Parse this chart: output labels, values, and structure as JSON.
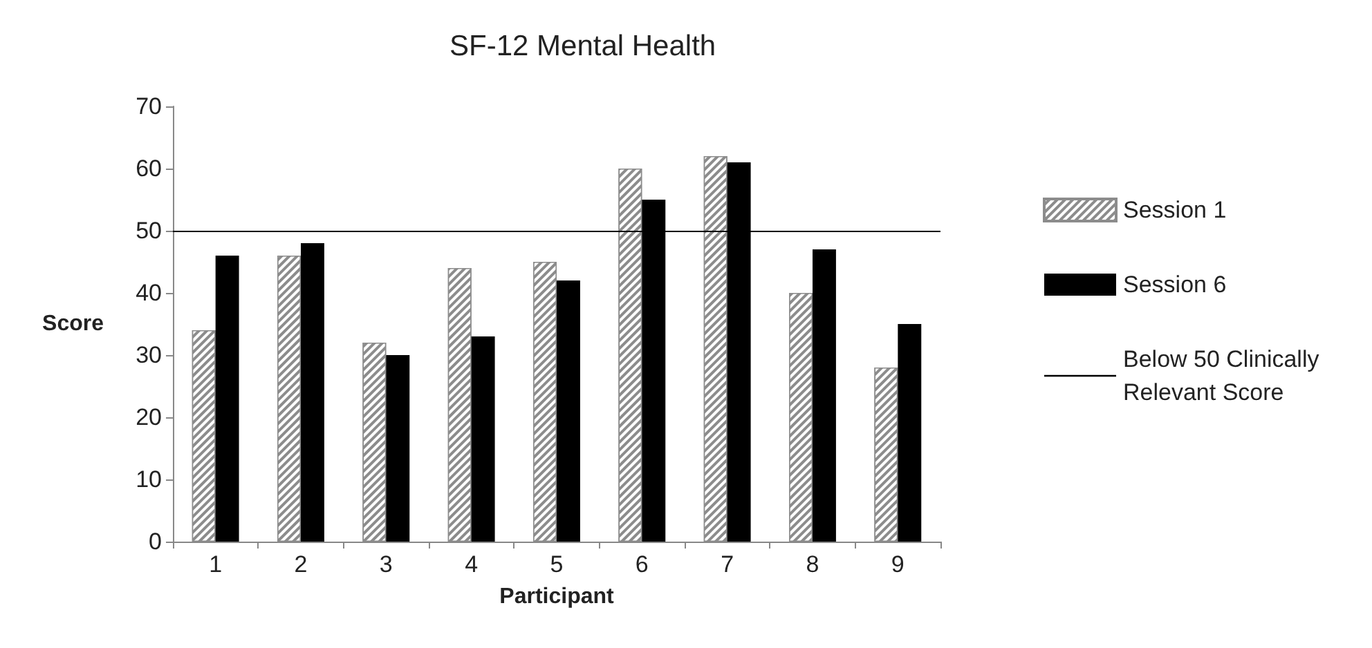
{
  "chart_data": {
    "type": "bar",
    "title": "SF-12 Mental Health",
    "xlabel": "Participant",
    "ylabel": "Score",
    "categories": [
      "1",
      "2",
      "3",
      "4",
      "5",
      "6",
      "7",
      "8",
      "9"
    ],
    "series": [
      {
        "name": "Session 1",
        "color": "#8c8c8c",
        "values": [
          34,
          46,
          32,
          44,
          45,
          60,
          62,
          40,
          28
        ]
      },
      {
        "name": "Session 6",
        "color": "#000000",
        "values": [
          46,
          48,
          30,
          33,
          42,
          55,
          61,
          47,
          35
        ]
      }
    ],
    "ylim": [
      0,
      70
    ],
    "yticks": [
      0,
      10,
      20,
      30,
      40,
      50,
      60,
      70
    ],
    "grid": false,
    "legend": "right",
    "ref_lines": [
      {
        "axis": "y",
        "value": 50,
        "label": "Below 50 Clinically Relevant Score",
        "color": "#000000",
        "line_style": "solid"
      }
    ]
  }
}
